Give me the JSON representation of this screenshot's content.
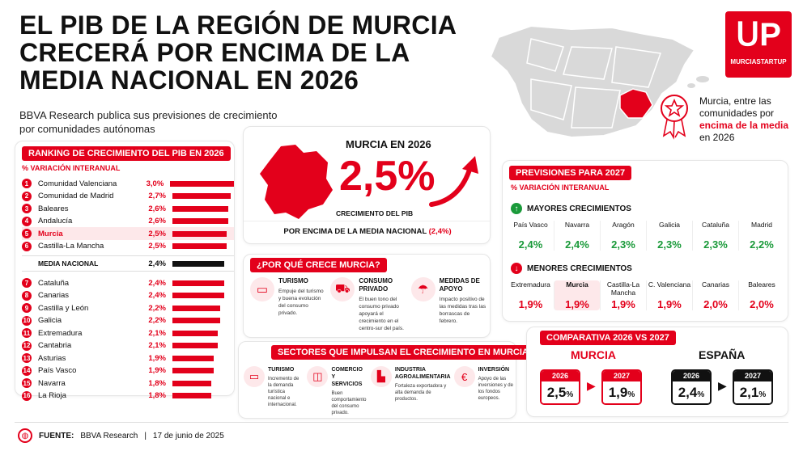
{
  "headline": "EL PIB DE LA REGIÓN DE MURCIA CRECERÁ POR ENCIMA DE LA MEDIA NACIONAL EN 2026",
  "subtitle": "BBVA Research publica sus previsiones de crecimiento por comunidades autónomas",
  "logo": {
    "text": "MURCIASTARTUP"
  },
  "badge": {
    "line1": "Murcia, entre las comunidades por",
    "highlight": "encima de la media",
    "line2": "en 2026"
  },
  "ranking": {
    "title": "RANKING DE CRECIMIENTO DEL PIB EN 2026",
    "subtitle": "% VARIACIÓN INTERANUAL",
    "national_label": "MEDIA NACIONAL",
    "national_value": "2,4%",
    "national_num": 2.4,
    "top": [
      {
        "n": "1",
        "name": "Comunidad Valenciana",
        "value": "3,0%",
        "num": 3.0
      },
      {
        "n": "2",
        "name": "Comunidad de Madrid",
        "value": "2,7%",
        "num": 2.7
      },
      {
        "n": "3",
        "name": "Baleares",
        "value": "2,6%",
        "num": 2.6
      },
      {
        "n": "4",
        "name": "Andalucía",
        "value": "2,6%",
        "num": 2.6
      },
      {
        "n": "5",
        "name": "Murcia",
        "value": "2,5%",
        "num": 2.5
      },
      {
        "n": "6",
        "name": "Castilla-La Mancha",
        "value": "2,5%",
        "num": 2.5
      }
    ],
    "bottom": [
      {
        "n": "7",
        "name": "Cataluña",
        "value": "2,4%",
        "num": 2.4
      },
      {
        "n": "8",
        "name": "Canarias",
        "value": "2,4%",
        "num": 2.4
      },
      {
        "n": "9",
        "name": "Castilla y León",
        "value": "2,2%",
        "num": 2.2
      },
      {
        "n": "10",
        "name": "Galicia",
        "value": "2,2%",
        "num": 2.2
      },
      {
        "n": "11",
        "name": "Extremadura",
        "value": "2,1%",
        "num": 2.1
      },
      {
        "n": "12",
        "name": "Cantabria",
        "value": "2,1%",
        "num": 2.1
      },
      {
        "n": "13",
        "name": "Asturias",
        "value": "1,9%",
        "num": 1.9
      },
      {
        "n": "14",
        "name": "País Vasco",
        "value": "1,9%",
        "num": 1.9
      },
      {
        "n": "15",
        "name": "Navarra",
        "value": "1,8%",
        "num": 1.8
      },
      {
        "n": "16",
        "name": "La Rioja",
        "value": "1,8%",
        "num": 1.8
      }
    ]
  },
  "murcia2026": {
    "title": "MURCIA EN 2026",
    "value": "2,5%",
    "caption": "CRECIMIENTO DEL PIB",
    "footer": "POR ENCIMA DE LA MEDIA NACIONAL",
    "footer_value": "(2,4%)"
  },
  "why": {
    "title": "¿POR QUÉ CRECE MURCIA?",
    "items": [
      {
        "icon": "suitcase-icon",
        "glyph": "▭",
        "title": "TURISMO",
        "desc": "Empuje del turismo y buena evolución del consumo privado."
      },
      {
        "icon": "cart-icon",
        "glyph": "⛟",
        "title": "CONSUMO PRIVADO",
        "desc": "El buen tono del consumo privado apoyará el crecimiento en el centro-sur del país."
      },
      {
        "icon": "rain-cloud-icon",
        "glyph": "☂",
        "title": "MEDIDAS DE APOYO",
        "desc": "Impacto positivo de las medidas tras las borrascas de febrero."
      }
    ]
  },
  "sectors": {
    "title": "SECTORES QUE IMPULSAN EL CRECIMIENTO EN MURCIA",
    "items": [
      {
        "icon": "suitcase-icon",
        "glyph": "▭",
        "title": "TURISMO",
        "desc": "Incremento de la demanda turística nacional e internacional."
      },
      {
        "icon": "shopping-bag-icon",
        "glyph": "◫",
        "title": "COMERCIO Y SERVICIOS",
        "desc": "Buen comportamiento del consumo privado."
      },
      {
        "icon": "factory-icon",
        "glyph": "▙",
        "title": "INDUSTRIA AGROALIMENTARIA",
        "desc": "Fortaleza exportadora y alta demanda de productos."
      },
      {
        "icon": "euro-hand-icon",
        "glyph": "€",
        "title": "INVERSIÓN",
        "desc": "Apoyo de las inversiones y de los fondos europeos."
      }
    ]
  },
  "forecast": {
    "title": "PREVISIONES PARA 2027",
    "subtitle": "% VARIACIÓN INTERANUAL",
    "up_title": "MAYORES CRECIMIENTOS",
    "down_title": "MENORES CRECIMIENTOS",
    "up": [
      {
        "name": "País Vasco",
        "value": "2,4%"
      },
      {
        "name": "Navarra",
        "value": "2,4%"
      },
      {
        "name": "Aragón",
        "value": "2,3%"
      },
      {
        "name": "Galicia",
        "value": "2,3%"
      },
      {
        "name": "Cataluña",
        "value": "2,3%"
      },
      {
        "name": "Madrid",
        "value": "2,2%"
      }
    ],
    "down": [
      {
        "name": "Extremadura",
        "value": "1,9%"
      },
      {
        "name": "Murcia",
        "value": "1,9%"
      },
      {
        "name": "Castilla-La Mancha",
        "value": "1,9%"
      },
      {
        "name": "C. Valenciana",
        "value": "1,9%"
      },
      {
        "name": "Canarias",
        "value": "2,0%"
      },
      {
        "name": "Baleares",
        "value": "2,0%"
      }
    ],
    "colors": {
      "up": "#1a9a3a",
      "down": "#e3001b"
    }
  },
  "compare": {
    "title": "COMPARATIVA 2026 VS 2027",
    "murcia": {
      "label": "MURCIA",
      "y1": "2026",
      "v1": "2,5",
      "y2": "2027",
      "v2": "1,9",
      "unit": "%"
    },
    "spain": {
      "label": "ESPAÑA",
      "y1": "2026",
      "v1": "2,4",
      "y2": "2027",
      "v2": "2,1",
      "unit": "%"
    }
  },
  "footer": {
    "label": "FUENTE:",
    "source": "BBVA Research",
    "sep": "|",
    "date": "17 de junio de 2025"
  }
}
